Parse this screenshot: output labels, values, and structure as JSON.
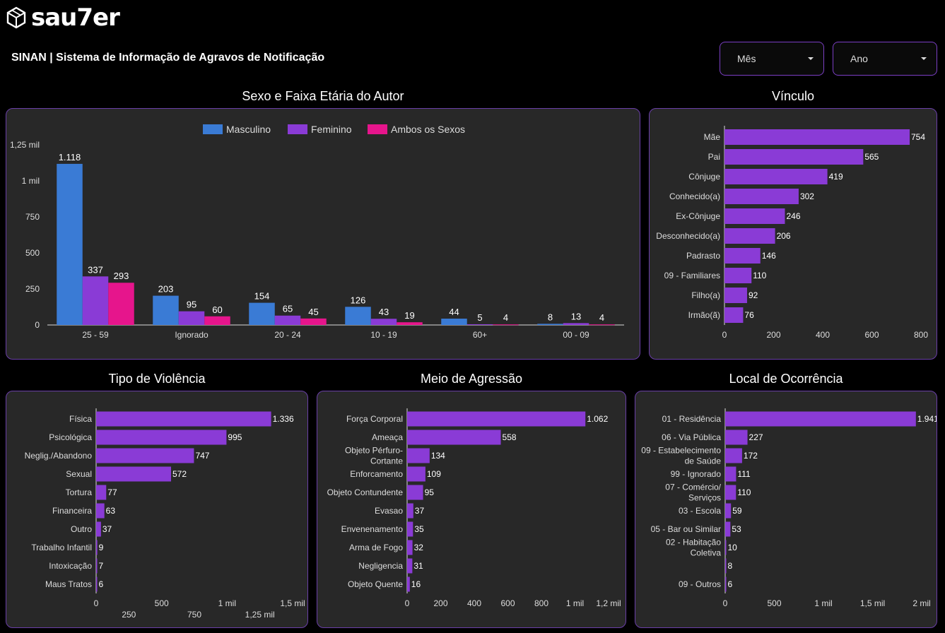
{
  "brand": {
    "name": "sau7er"
  },
  "header": {
    "title": "SINAN | Sistema de Informação de Agravos de Notificação"
  },
  "filters": [
    {
      "label": "Mês"
    },
    {
      "label": "Ano"
    }
  ],
  "colors": {
    "masculino": "#3a7bd5",
    "feminino": "#8a3bd6",
    "ambos": "#e6158c",
    "bar": "#8a3bd6",
    "panel": "#282828",
    "border": "#6a3fa8"
  },
  "chart_data": [
    {
      "type": "bar",
      "title": "Sexo e Faixa Etária do Autor",
      "categories": [
        "25 - 59",
        "Ignorado",
        "20 - 24",
        "10 - 19",
        "60+",
        "00 - 09"
      ],
      "series": [
        {
          "name": "Masculino",
          "values": [
            1118,
            203,
            154,
            126,
            44,
            8
          ],
          "labels": [
            "1.118",
            "203",
            "154",
            "126",
            "44",
            "8"
          ]
        },
        {
          "name": "Feminino",
          "values": [
            337,
            95,
            65,
            43,
            5,
            13
          ],
          "labels": [
            "337",
            "95",
            "65",
            "43",
            "5",
            "13"
          ]
        },
        {
          "name": "Ambos os Sexos",
          "values": [
            293,
            60,
            45,
            19,
            4,
            4
          ],
          "labels": [
            "293",
            "60",
            "45",
            "19",
            "4",
            "4"
          ]
        }
      ],
      "ylim": [
        0,
        1250
      ],
      "yticks": [
        0,
        250,
        500,
        750,
        1000,
        1250
      ],
      "ytick_labels": [
        "0",
        "250",
        "500",
        "750",
        "1 mil",
        "1,25 mil"
      ],
      "legend": "top-center"
    },
    {
      "type": "bar",
      "orientation": "horizontal",
      "title": "Vínculo",
      "categories": [
        "Mãe",
        "Pai",
        "Cônjuge",
        "Conhecido(a)",
        "Ex-Cônjuge",
        "Desconhecido(a)",
        "Padrasto",
        "09 - Familiares",
        "Filho(a)",
        "Irmão(ã)"
      ],
      "values": [
        754,
        565,
        419,
        302,
        246,
        206,
        146,
        110,
        92,
        76
      ],
      "labels": [
        "754",
        "565",
        "419",
        "302",
        "246",
        "206",
        "146",
        "110",
        "92",
        "76"
      ],
      "xlim": [
        0,
        800
      ],
      "xticks": [
        0,
        200,
        400,
        600,
        800
      ],
      "xtick_labels": [
        "0",
        "200",
        "400",
        "600",
        "800"
      ]
    },
    {
      "type": "bar",
      "orientation": "horizontal",
      "title": "Tipo de Violência",
      "categories": [
        "Física",
        "Psicológica",
        "Neglig./Abandono",
        "Sexual",
        "Tortura",
        "Financeira",
        "Outro",
        "Trabalho Infantil",
        "Intoxicação",
        "Maus Tratos"
      ],
      "values": [
        1336,
        995,
        747,
        572,
        77,
        63,
        37,
        9,
        7,
        6
      ],
      "labels": [
        "1.336",
        "995",
        "747",
        "572",
        "77",
        "63",
        "37",
        "9",
        "7",
        "6"
      ],
      "xlim": [
        0,
        1500
      ],
      "xticks": [
        0,
        250,
        500,
        750,
        1000,
        1250,
        1500
      ],
      "xtick_labels": [
        "0",
        "250",
        "500",
        "750",
        "1 mil",
        "1,25 mil",
        "1,5 mil"
      ]
    },
    {
      "type": "bar",
      "orientation": "horizontal",
      "title": "Meio de Agressão",
      "categories": [
        "Força Corporal",
        "Ameaça",
        "Objeto Pérfuro-\nCortante",
        "Enforcamento",
        "Objeto Contundente",
        "Evasao",
        "Envenenamento",
        "Arma de Fogo",
        "Negligencia",
        "Objeto Quente"
      ],
      "values": [
        1062,
        558,
        134,
        109,
        95,
        37,
        35,
        32,
        31,
        16
      ],
      "labels": [
        "1.062",
        "558",
        "134",
        "109",
        "95",
        "37",
        "35",
        "32",
        "31",
        "16"
      ],
      "xlim": [
        0,
        1200
      ],
      "xticks": [
        0,
        200,
        400,
        600,
        800,
        1000,
        1200
      ],
      "xtick_labels": [
        "0",
        "200",
        "400",
        "600",
        "800",
        "1 mil",
        "1,2 mil"
      ]
    },
    {
      "type": "bar",
      "orientation": "horizontal",
      "title": "Local de Ocorrência",
      "categories": [
        "01 - Residência",
        "06 - Via Pública",
        "09 - Estabelecimento\nde Saúde",
        "99 - Ignorado",
        "07 - Comércio/\nServiços",
        "03 - Escola",
        "05 - Bar ou Similar",
        "02 - Habitação\nColetiva",
        "",
        "09 - Outros"
      ],
      "values": [
        1941,
        227,
        172,
        111,
        110,
        59,
        53,
        10,
        8,
        6
      ],
      "labels": [
        "1.941",
        "227",
        "172",
        "111",
        "110",
        "59",
        "53",
        "10",
        "8",
        "6"
      ],
      "xlim": [
        0,
        2000
      ],
      "xticks": [
        0,
        500,
        1000,
        1500,
        2000
      ],
      "xtick_labels": [
        "0",
        "500",
        "1 mil",
        "1,5 mil",
        "2 mil"
      ]
    }
  ]
}
